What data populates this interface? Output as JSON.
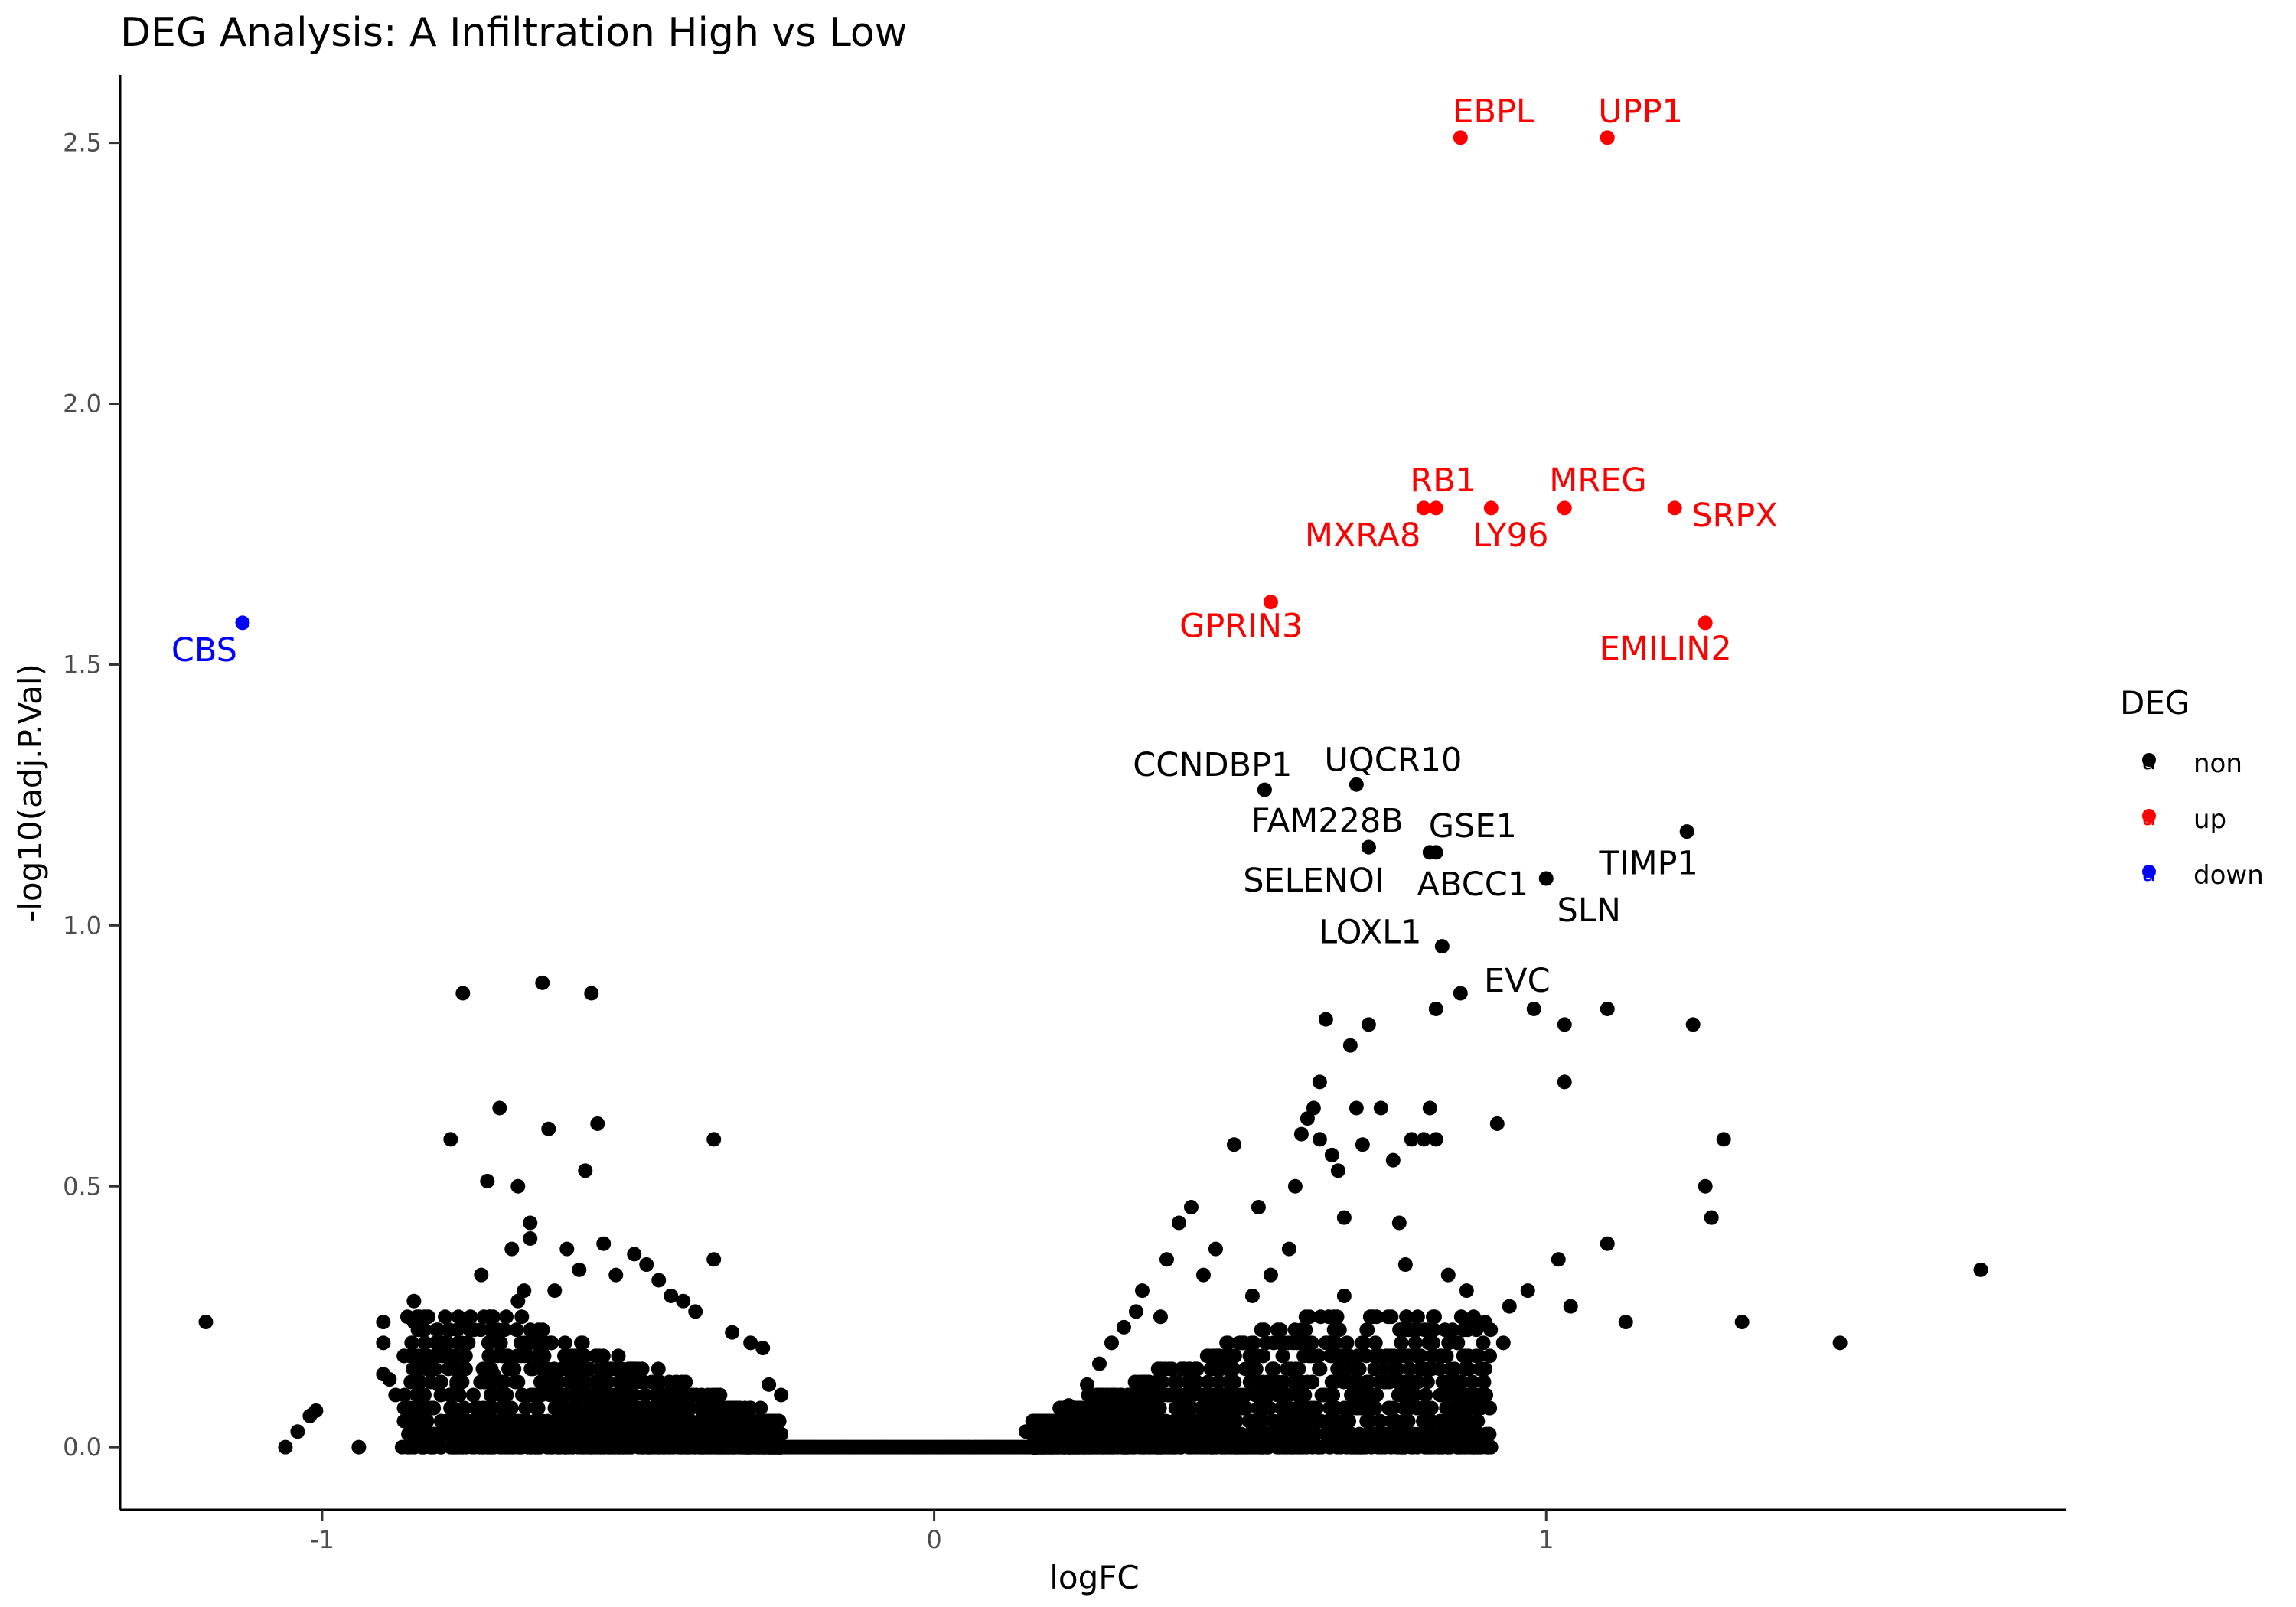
{
  "chart_data": {
    "type": "scatter",
    "title": "DEG Analysis: A Infiltration High vs Low",
    "xlabel": "logFC",
    "ylabel": "-log10(adj.P.Val)",
    "xlim": [
      -1.33,
      1.85
    ],
    "ylim": [
      -0.12,
      2.63
    ],
    "x_ticks": [
      {
        "value": -1,
        "label": "-1"
      },
      {
        "value": 0,
        "label": "0"
      },
      {
        "value": 1,
        "label": "1"
      }
    ],
    "y_ticks": [
      {
        "value": 0.0,
        "label": "0.0"
      },
      {
        "value": 0.5,
        "label": "0.5"
      },
      {
        "value": 1.0,
        "label": "1.0"
      },
      {
        "value": 1.5,
        "label": "1.5"
      },
      {
        "value": 2.0,
        "label": "2.0"
      },
      {
        "value": 2.5,
        "label": "2.5"
      }
    ],
    "grid": false,
    "legend": {
      "title": "DEG",
      "placement": "right",
      "glyph": "a",
      "entries": [
        {
          "key": "non",
          "label": "non",
          "color": "#000000"
        },
        {
          "key": "up",
          "label": "up",
          "color": "#ff0000"
        },
        {
          "key": "down",
          "label": "down",
          "color": "#0000ff"
        }
      ]
    },
    "series": [
      {
        "name": "up",
        "color": "#ff0000",
        "points": [
          {
            "x": 0.86,
            "y": 2.51,
            "label": "EBPL"
          },
          {
            "x": 1.1,
            "y": 2.51,
            "label": "UPP1"
          },
          {
            "x": 0.8,
            "y": 1.8,
            "label": "RB1"
          },
          {
            "x": 0.82,
            "y": 1.8,
            "label": "MXRA8"
          },
          {
            "x": 0.91,
            "y": 1.8,
            "label": "LY96"
          },
          {
            "x": 1.03,
            "y": 1.8,
            "label": "MREG"
          },
          {
            "x": 1.21,
            "y": 1.8,
            "label": "SRPX"
          },
          {
            "x": 0.55,
            "y": 1.62,
            "label": "GPRIN3"
          },
          {
            "x": 1.26,
            "y": 1.58,
            "label": "EMILIN2"
          }
        ]
      },
      {
        "name": "down",
        "color": "#0000ff",
        "points": [
          {
            "x": -1.13,
            "y": 1.58,
            "label": "CBS"
          }
        ]
      },
      {
        "name": "non",
        "color": "#000000",
        "labeled_points": [
          {
            "x": 0.54,
            "y": 1.26,
            "label": "CCNDBP1"
          },
          {
            "x": 0.69,
            "y": 1.27,
            "label": "UQCR10"
          },
          {
            "x": 0.71,
            "y": 1.15,
            "label": "FAM228B"
          },
          {
            "x": 0.81,
            "y": 1.14,
            "label": "GSE1"
          },
          {
            "x": 0.71,
            "y": 1.15,
            "label": "SELENOI"
          },
          {
            "x": 0.82,
            "y": 1.14,
            "label": "ABCC1"
          },
          {
            "x": 1.23,
            "y": 1.18,
            "label": "TIMP1"
          },
          {
            "x": 1.0,
            "y": 1.09,
            "label": "SLN"
          },
          {
            "x": 0.83,
            "y": 0.96,
            "label": "LOXL1"
          },
          {
            "x": 0.86,
            "y": 0.87,
            "label": "EVC"
          }
        ],
        "points": [
          [
            -1.19,
            0.24
          ],
          [
            -1.06,
            0.0
          ],
          [
            -1.04,
            0.03
          ],
          [
            -1.02,
            0.06
          ],
          [
            -1.01,
            0.07
          ],
          [
            -0.94,
            0.0
          ],
          [
            -0.9,
            0.2
          ],
          [
            -0.9,
            0.24
          ],
          [
            -0.9,
            0.14
          ],
          [
            -0.89,
            0.13
          ],
          [
            -0.88,
            0.1
          ],
          [
            -0.85,
            0.28
          ],
          [
            -0.85,
            0.24
          ],
          [
            -0.85,
            0.03
          ],
          [
            -0.81,
            0.12
          ],
          [
            -0.79,
            0.59
          ],
          [
            -0.78,
            0.12
          ],
          [
            -0.77,
            0.07
          ],
          [
            -0.77,
            0.24
          ],
          [
            -0.77,
            0.87
          ],
          [
            -0.76,
            0.02
          ],
          [
            -0.74,
            0.33
          ],
          [
            -0.73,
            0.51
          ],
          [
            -0.72,
            0.14
          ],
          [
            -0.71,
            0.65
          ],
          [
            -0.7,
            0.05
          ],
          [
            -0.69,
            0.38
          ],
          [
            -0.68,
            0.28
          ],
          [
            -0.68,
            0.5
          ],
          [
            -0.67,
            0.3
          ],
          [
            -0.66,
            0.4
          ],
          [
            -0.66,
            0.43
          ],
          [
            -0.65,
            0.22
          ],
          [
            -0.64,
            0.89
          ],
          [
            -0.63,
            0.61
          ],
          [
            -0.62,
            0.3
          ],
          [
            -0.6,
            0.38
          ],
          [
            -0.58,
            0.34
          ],
          [
            -0.57,
            0.53
          ],
          [
            -0.56,
            0.87
          ],
          [
            -0.55,
            0.62
          ],
          [
            -0.54,
            0.39
          ],
          [
            -0.52,
            0.33
          ],
          [
            -0.49,
            0.37
          ],
          [
            -0.47,
            0.35
          ],
          [
            -0.45,
            0.32
          ],
          [
            -0.43,
            0.29
          ],
          [
            -0.41,
            0.28
          ],
          [
            -0.39,
            0.26
          ],
          [
            -0.36,
            0.59
          ],
          [
            -0.36,
            0.36
          ],
          [
            -0.33,
            0.22
          ],
          [
            -0.3,
            0.2
          ],
          [
            -0.28,
            0.19
          ],
          [
            -0.27,
            0.12
          ],
          [
            -0.25,
            0.1
          ],
          [
            0.15,
            0.03
          ],
          [
            0.18,
            0.05
          ],
          [
            0.22,
            0.08
          ],
          [
            0.25,
            0.12
          ],
          [
            0.27,
            0.16
          ],
          [
            0.29,
            0.2
          ],
          [
            0.31,
            0.23
          ],
          [
            0.33,
            0.26
          ],
          [
            0.34,
            0.3
          ],
          [
            0.37,
            0.25
          ],
          [
            0.38,
            0.36
          ],
          [
            0.4,
            0.43
          ],
          [
            0.42,
            0.46
          ],
          [
            0.44,
            0.33
          ],
          [
            0.46,
            0.38
          ],
          [
            0.49,
            0.58
          ],
          [
            0.52,
            0.29
          ],
          [
            0.53,
            0.46
          ],
          [
            0.55,
            0.33
          ],
          [
            0.58,
            0.38
          ],
          [
            0.59,
            0.5
          ],
          [
            0.6,
            0.6
          ],
          [
            0.61,
            0.63
          ],
          [
            0.62,
            0.65
          ],
          [
            0.63,
            0.7
          ],
          [
            0.63,
            0.59
          ],
          [
            0.64,
            0.82
          ],
          [
            0.65,
            0.56
          ],
          [
            0.66,
            0.53
          ],
          [
            0.67,
            0.44
          ],
          [
            0.67,
            0.29
          ],
          [
            0.68,
            0.77
          ],
          [
            0.69,
            0.65
          ],
          [
            0.7,
            0.58
          ],
          [
            0.71,
            0.81
          ],
          [
            0.73,
            0.65
          ],
          [
            0.75,
            0.55
          ],
          [
            0.76,
            0.43
          ],
          [
            0.77,
            0.35
          ],
          [
            0.78,
            0.59
          ],
          [
            0.8,
            0.59
          ],
          [
            0.81,
            0.65
          ],
          [
            0.82,
            0.59
          ],
          [
            0.82,
            0.84
          ],
          [
            0.84,
            0.33
          ],
          [
            0.87,
            0.3
          ],
          [
            0.87,
            0.24
          ],
          [
            0.9,
            0.24
          ],
          [
            0.92,
            0.62
          ],
          [
            0.93,
            0.2
          ],
          [
            0.94,
            0.27
          ],
          [
            0.97,
            0.3
          ],
          [
            0.98,
            0.84
          ],
          [
            1.02,
            0.36
          ],
          [
            1.03,
            0.81
          ],
          [
            1.03,
            0.7
          ],
          [
            1.04,
            0.27
          ],
          [
            1.1,
            0.84
          ],
          [
            1.1,
            0.39
          ],
          [
            1.13,
            0.24
          ],
          [
            1.24,
            0.81
          ],
          [
            1.26,
            0.5
          ],
          [
            1.27,
            0.44
          ],
          [
            1.29,
            0.59
          ],
          [
            1.32,
            0.24
          ],
          [
            1.48,
            0.2
          ],
          [
            1.71,
            0.34
          ]
        ]
      }
    ]
  }
}
